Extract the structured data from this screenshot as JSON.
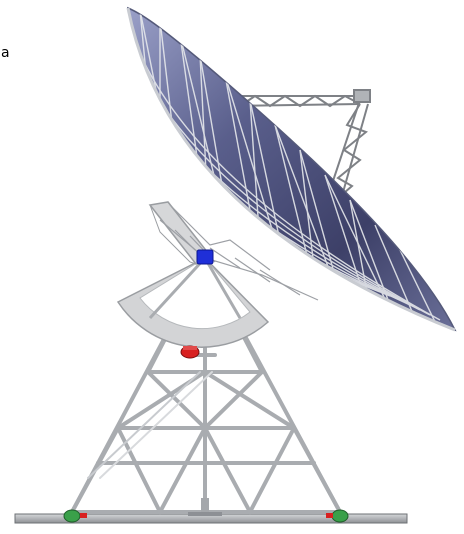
{
  "figure": {
    "letter": "a"
  },
  "colors": {
    "background": "#ffffff",
    "dish_surface": "#4a4f78",
    "truss": "#b9bcc0",
    "truss_dark": "#8d9095",
    "elevation_joint": "#1f2fd8",
    "lower_joint": "#d82020",
    "wheel": "#3aa04a",
    "rail": "#a6a9ad"
  },
  "icons": {
    "elevation_joint": "blue-joint-icon",
    "lower_joint": "red-joint-icon",
    "wheels": "green-wheel-icon"
  }
}
